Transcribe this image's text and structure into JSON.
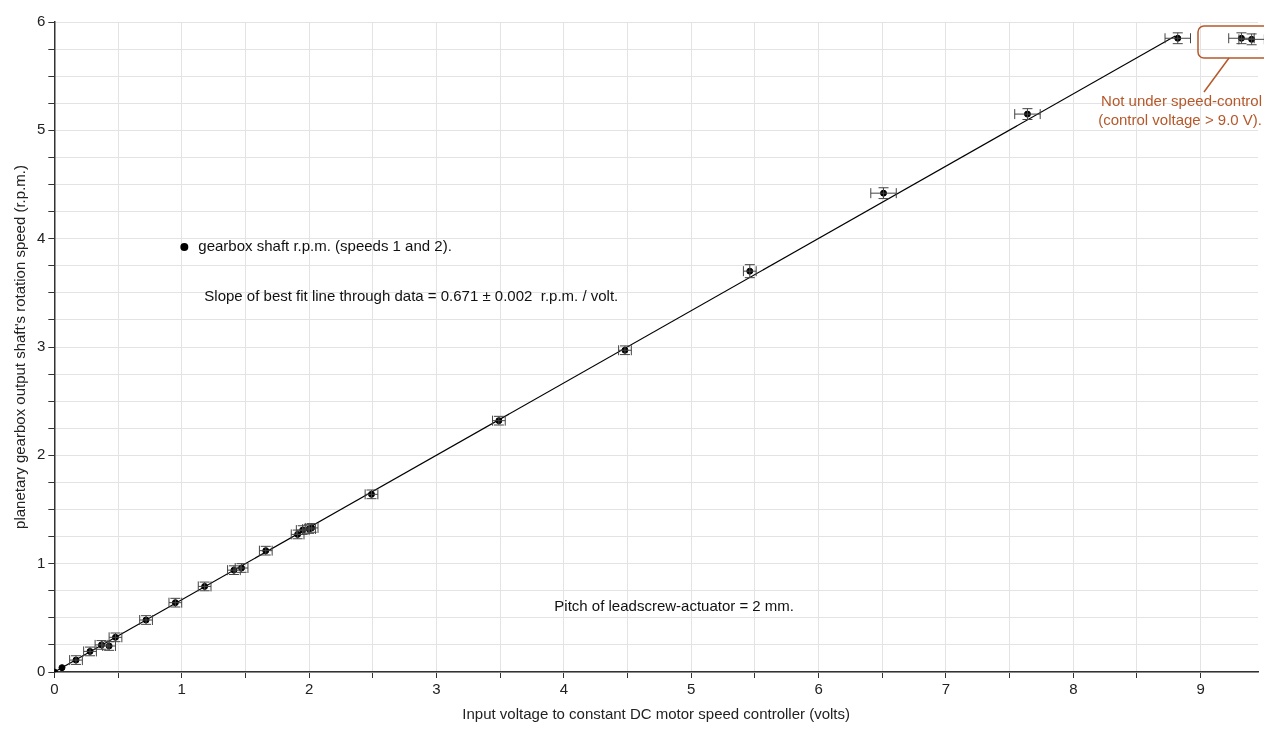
{
  "chart_data": {
    "type": "scatter",
    "xlabel": "Input voltage to constant DC motor speed controller (volts)",
    "ylabel": "planetary gearbox output shaft's rotation speed (r.p.m.)",
    "xlim": [
      0,
      9.45
    ],
    "ylim": [
      0,
      6
    ],
    "xticks": [
      0,
      {
        "value": 0.5,
        "label": null
      },
      1,
      {
        "value": 1.5,
        "label": null
      },
      2,
      {
        "value": 2.5,
        "label": null
      },
      3,
      {
        "value": 3.5,
        "label": null
      },
      4,
      {
        "value": 4.5,
        "label": null
      },
      5,
      {
        "value": 5.5,
        "label": null
      },
      6,
      {
        "value": 6.5,
        "label": null
      },
      7,
      {
        "value": 7.5,
        "label": null
      },
      8,
      {
        "value": 8.5,
        "label": null
      },
      9
    ],
    "yticks": [
      0,
      {
        "value": 0.25,
        "label": null
      },
      {
        "value": 0.5,
        "label": null
      },
      {
        "value": 0.75,
        "label": null
      },
      1,
      {
        "value": 1.25,
        "label": null
      },
      {
        "value": 1.5,
        "label": null
      },
      {
        "value": 1.75,
        "label": null
      },
      2,
      {
        "value": 2.25,
        "label": null
      },
      {
        "value": 2.5,
        "label": null
      },
      {
        "value": 2.75,
        "label": null
      },
      3,
      {
        "value": 3.25,
        "label": null
      },
      {
        "value": 3.5,
        "label": null
      },
      {
        "value": 3.75,
        "label": null
      },
      4,
      {
        "value": 4.25,
        "label": null
      },
      {
        "value": 4.5,
        "label": null
      },
      {
        "value": 4.75,
        "label": null
      },
      5,
      {
        "value": 5.25,
        "label": null
      },
      {
        "value": 5.5,
        "label": null
      },
      {
        "value": 5.75,
        "label": null
      },
      6
    ],
    "grid": true,
    "legend": "top left",
    "series": [
      {
        "name": "gearbox shaft r.p.m. (speeds 1 and 2).",
        "marker": "circle",
        "color": "#000000",
        "x": [
          0.0,
          0.06,
          0.17,
          0.28,
          0.37,
          0.43,
          0.48,
          0.72,
          0.95,
          1.18,
          1.41,
          1.47,
          1.66,
          1.91,
          1.95,
          2.0,
          2.02,
          2.49,
          3.49,
          4.48,
          5.46,
          6.51,
          7.64,
          8.82,
          9.32,
          9.4
        ],
        "values": [
          0.0,
          0.04,
          0.11,
          0.19,
          0.25,
          0.24,
          0.32,
          0.48,
          0.64,
          0.79,
          0.94,
          0.96,
          1.12,
          1.27,
          1.31,
          1.32,
          1.33,
          1.64,
          2.32,
          2.97,
          3.7,
          4.42,
          5.15,
          5.85,
          5.85,
          5.84
        ],
        "errors": [
          null,
          null,
          0.04,
          0.04,
          0.04,
          0.04,
          0.04,
          0.04,
          0.04,
          0.04,
          0.04,
          0.04,
          0.04,
          0.04,
          0.04,
          0.04,
          0.04,
          0.04,
          0.04,
          0.04,
          0.06,
          0.05,
          0.05,
          0.05,
          0.05,
          0.05
        ],
        "xerrors": [
          null,
          null,
          0.05,
          0.05,
          0.05,
          0.05,
          0.05,
          0.05,
          0.05,
          0.05,
          0.05,
          0.05,
          0.05,
          0.05,
          0.05,
          0.05,
          0.05,
          0.05,
          0.05,
          0.05,
          0.05,
          0.1,
          0.1,
          0.1,
          0.1,
          0.1
        ]
      },
      {
        "type": "line",
        "color": "#000000",
        "x": [
          0,
          8.8
        ],
        "values": [
          0,
          5.87
        ]
      }
    ],
    "annotations": [
      "Slope of best fit line through data = 0.671 ± 0.002  r.p.m. / volt.",
      "Pitch of leadscrew-actuator = 2 mm.",
      "Not under speed-control\n(control voltage > 9.0 V)."
    ]
  }
}
